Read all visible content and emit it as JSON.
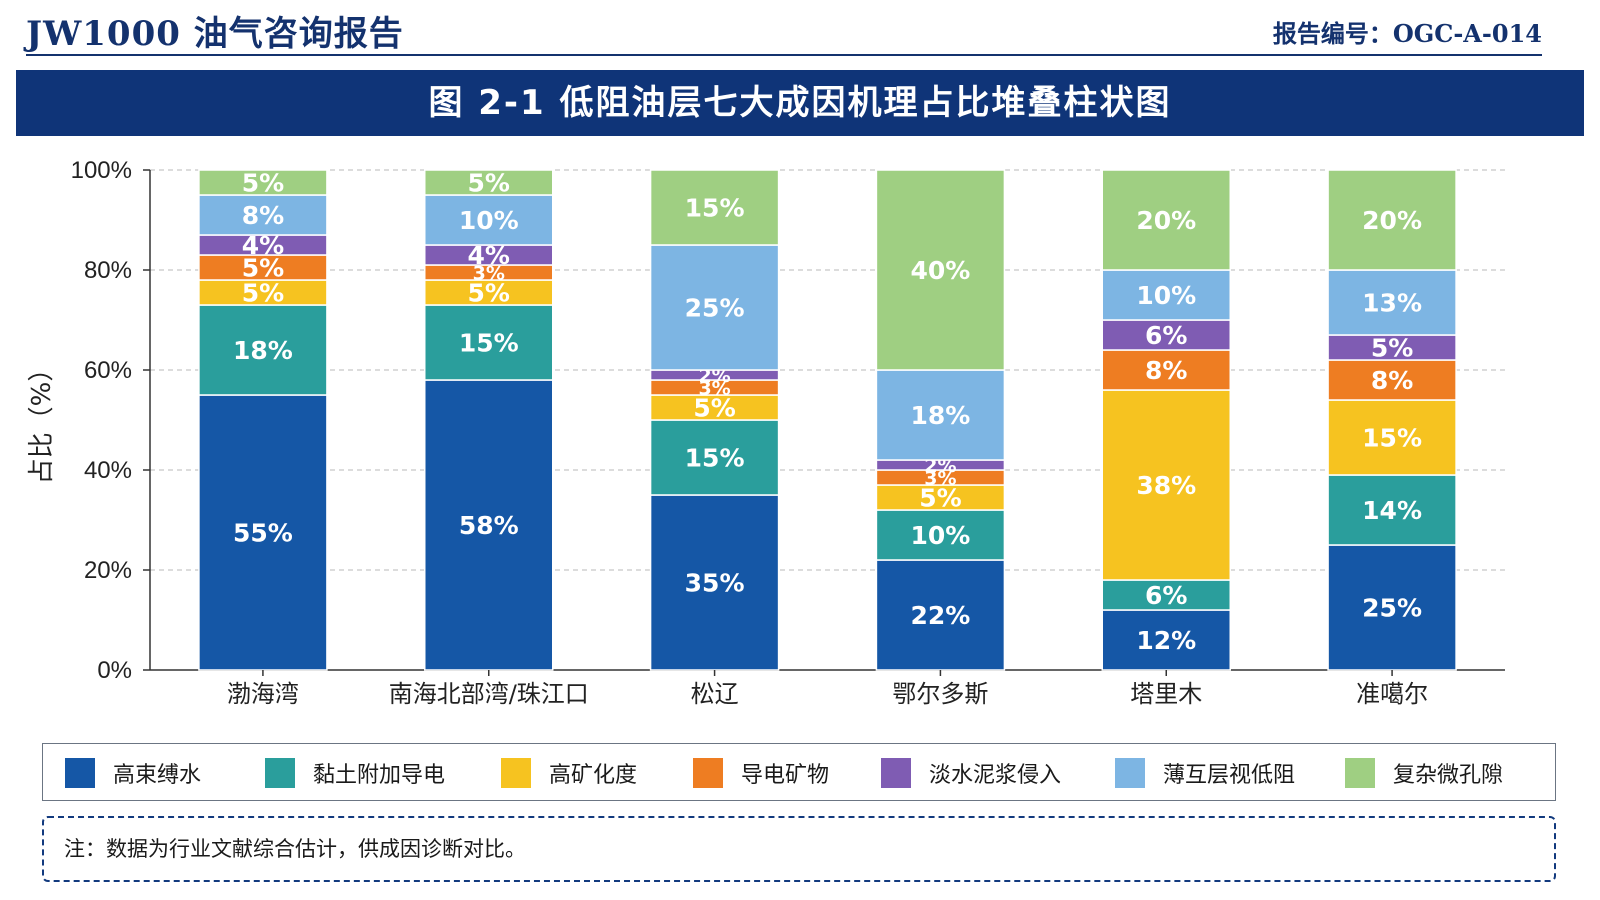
{
  "header": {
    "title": "JW1000 油气咨询报告",
    "report_no": "报告编号：OGC-A-014"
  },
  "banner": {
    "title": "图 2-1   低阻油层七大成因机理占比堆叠柱状图"
  },
  "chart_data": {
    "type": "bar",
    "stacked": true,
    "ylabel": "占比（%）",
    "ylim": [
      0,
      100
    ],
    "yticks": [
      "0%",
      "20%",
      "40%",
      "60%",
      "80%",
      "100%"
    ],
    "grid": true,
    "legend_position": "bottom",
    "categories": [
      "渤海湾",
      "南海北部湾/珠江口",
      "松辽",
      "鄂尔多斯",
      "塔里木",
      "准噶尔"
    ],
    "series": [
      {
        "name": "高束缚水",
        "color": "#1557a6",
        "values": [
          55,
          58,
          35,
          22,
          12,
          25
        ]
      },
      {
        "name": "黏土附加导电",
        "color": "#2a9e9c",
        "values": [
          18,
          15,
          15,
          10,
          6,
          14
        ]
      },
      {
        "name": "高矿化度",
        "color": "#f6c320",
        "values": [
          5,
          5,
          5,
          5,
          38,
          15
        ]
      },
      {
        "name": "导电矿物",
        "color": "#ee7d22",
        "values": [
          5,
          3,
          3,
          3,
          8,
          8
        ]
      },
      {
        "name": "淡水泥浆侵入",
        "color": "#7f5cb3",
        "values": [
          4,
          4,
          2,
          2,
          6,
          5
        ]
      },
      {
        "name": "薄互层视低阻",
        "color": "#7db5e3",
        "values": [
          8,
          10,
          25,
          18,
          10,
          13
        ]
      },
      {
        "name": "复杂微孔隙",
        "color": "#9fcf82",
        "values": [
          5,
          5,
          15,
          40,
          20,
          20
        ]
      }
    ]
  },
  "note": "注：数据为行业文献综合估计，供成因诊断对比。"
}
